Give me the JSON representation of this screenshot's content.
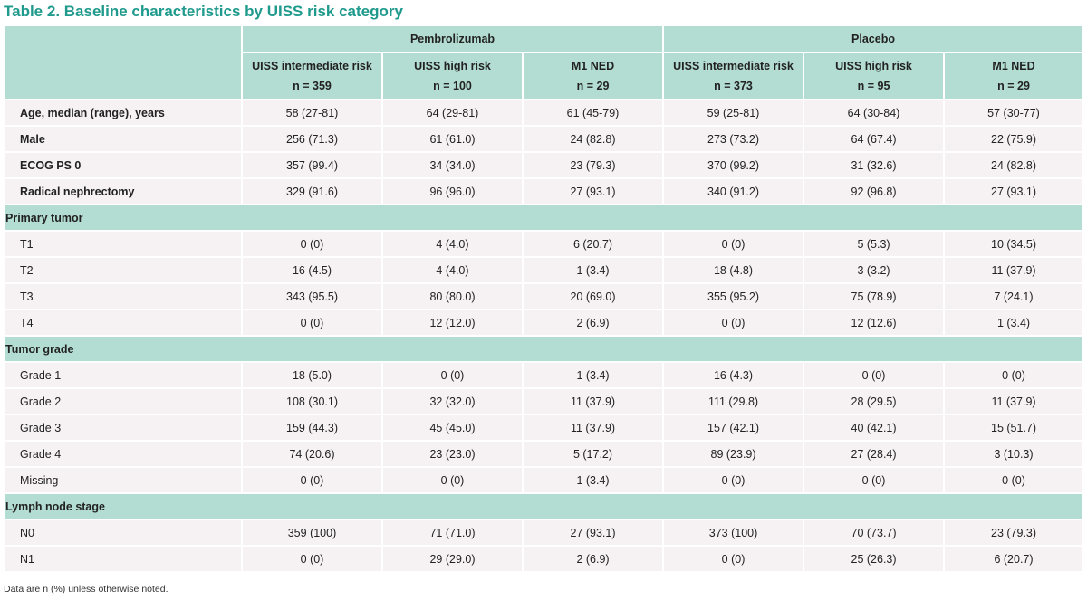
{
  "title": "Table 2. Baseline characteristics by UISS risk category",
  "groups": [
    "Pembrolizumab",
    "Placebo"
  ],
  "subheaders": [
    {
      "label": "UISS intermediate risk",
      "n": "n = 359"
    },
    {
      "label": "UISS high risk",
      "n": "n = 100"
    },
    {
      "label": "M1 NED",
      "n": "n = 29"
    },
    {
      "label": "UISS intermediate risk",
      "n": "n = 373"
    },
    {
      "label": "UISS high risk",
      "n": "n = 95"
    },
    {
      "label": "M1 NED",
      "n": "n = 29"
    }
  ],
  "rows": [
    {
      "label": "Age, median (range), years",
      "values": [
        "58 (27-81)",
        "64 (29-81)",
        "61 (45-79)",
        "59 (25-81)",
        "64 (30-84)",
        "57 (30-77)"
      ]
    },
    {
      "label": "Male",
      "values": [
        "256 (71.3)",
        "61 (61.0)",
        "24 (82.8)",
        "273 (73.2)",
        "64 (67.4)",
        "22 (75.9)"
      ]
    },
    {
      "label": "ECOG PS 0",
      "values": [
        "357 (99.4)",
        "34 (34.0)",
        "23 (79.3)",
        "370 (99.2)",
        "31 (32.6)",
        "24 (82.8)"
      ]
    },
    {
      "label": "Radical nephrectomy",
      "values": [
        "329 (91.6)",
        "96 (96.0)",
        "27 (93.1)",
        "340 (91.2)",
        "92 (96.8)",
        "27 (93.1)"
      ]
    }
  ],
  "sections": [
    {
      "title": "Primary tumor",
      "rows": [
        {
          "label": "T1",
          "values": [
            "0 (0)",
            "4 (4.0)",
            "6 (20.7)",
            "0 (0)",
            "5 (5.3)",
            "10 (34.5)"
          ]
        },
        {
          "label": "T2",
          "values": [
            "16 (4.5)",
            "4 (4.0)",
            "1 (3.4)",
            "18 (4.8)",
            "3 (3.2)",
            "11 (37.9)"
          ]
        },
        {
          "label": "T3",
          "values": [
            "343 (95.5)",
            "80 (80.0)",
            "20 (69.0)",
            "355 (95.2)",
            "75 (78.9)",
            "7 (24.1)"
          ]
        },
        {
          "label": "T4",
          "values": [
            "0 (0)",
            "12 (12.0)",
            "2 (6.9)",
            "0 (0)",
            "12 (12.6)",
            "1 (3.4)"
          ]
        }
      ]
    },
    {
      "title": "Tumor grade",
      "rows": [
        {
          "label": "Grade 1",
          "values": [
            "18 (5.0)",
            "0 (0)",
            "1 (3.4)",
            "16 (4.3)",
            "0 (0)",
            "0 (0)"
          ]
        },
        {
          "label": "Grade 2",
          "values": [
            "108 (30.1)",
            "32 (32.0)",
            "11 (37.9)",
            "111 (29.8)",
            "28 (29.5)",
            "11 (37.9)"
          ]
        },
        {
          "label": "Grade 3",
          "values": [
            "159 (44.3)",
            "45 (45.0)",
            "11 (37.9)",
            "157 (42.1)",
            "40 (42.1)",
            "15 (51.7)"
          ]
        },
        {
          "label": "Grade 4",
          "values": [
            "74 (20.6)",
            "23 (23.0)",
            "5 (17.2)",
            "89 (23.9)",
            "27 (28.4)",
            "3 (10.3)"
          ]
        },
        {
          "label": "Missing",
          "values": [
            "0 (0)",
            "0 (0)",
            "1 (3.4)",
            "0 (0)",
            "0 (0)",
            "0 (0)"
          ]
        }
      ]
    },
    {
      "title": "Lymph node stage",
      "rows": [
        {
          "label": "N0",
          "values": [
            "359 (100)",
            "71 (71.0)",
            "27 (93.1)",
            "373 (100)",
            "70 (73.7)",
            "23 (79.3)"
          ]
        },
        {
          "label": "N1",
          "values": [
            "0 (0)",
            "29 (29.0)",
            "2 (6.9)",
            "0 (0)",
            "25 (26.3)",
            "6 (20.7)"
          ]
        }
      ]
    }
  ],
  "footnote": "Data are n (%) unless otherwise noted.",
  "colors": {
    "title": "#1f9a8c",
    "header_bg": "#b3ddd2",
    "row_bg": "#f6f1f3"
  }
}
